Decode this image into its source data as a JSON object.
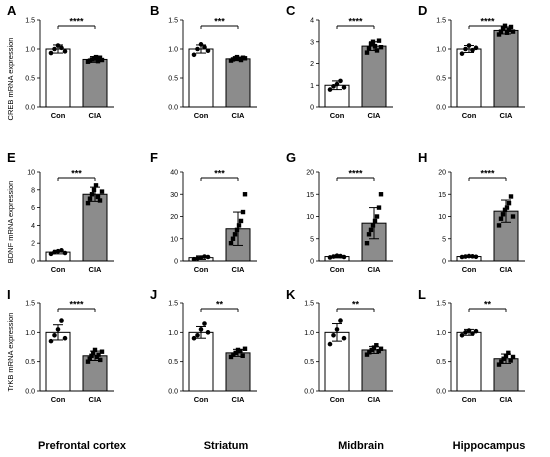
{
  "colors": {
    "con_bar": "#ffffff",
    "cia_bar": "#8c8c8c",
    "con_point": "#000000",
    "cia_point": "#000000"
  },
  "row_ylabels": [
    "CREB mRNA expression",
    "BDNF mRNA expression",
    "TrKB mRNA expression"
  ],
  "regions": [
    "Prefrontal cortex",
    "Striatum",
    "Midbrain",
    "Hippocampus"
  ],
  "chart_data": [
    {
      "panel": "A",
      "type": "bar",
      "categories": [
        "Con",
        "CIA"
      ],
      "values": [
        1.0,
        0.82
      ],
      "errors": [
        0.07,
        0.05
      ],
      "ylim": [
        0,
        1.5
      ],
      "yticks": [
        "0.0",
        "0.5",
        "1.0",
        "1.5"
      ],
      "significance": "****",
      "points": [
        [
          0.93,
          1.0,
          1.06,
          1.02,
          0.96
        ],
        [
          0.78,
          0.8,
          0.82,
          0.84,
          0.86,
          0.79,
          0.85,
          0.81
        ]
      ]
    },
    {
      "panel": "B",
      "type": "bar",
      "categories": [
        "Con",
        "CIA"
      ],
      "values": [
        1.0,
        0.83
      ],
      "errors": [
        0.07,
        0.03
      ],
      "ylim": [
        0,
        1.5
      ],
      "yticks": [
        "0.0",
        "0.5",
        "1.0",
        "1.5"
      ],
      "significance": "***",
      "points": [
        [
          0.9,
          1.0,
          1.08,
          1.03,
          0.97
        ],
        [
          0.8,
          0.82,
          0.84,
          0.86,
          0.83,
          0.81,
          0.85,
          0.84
        ]
      ]
    },
    {
      "panel": "C",
      "type": "bar",
      "categories": [
        "Con",
        "CIA"
      ],
      "values": [
        1.0,
        2.8
      ],
      "errors": [
        0.2,
        0.2
      ],
      "ylim": [
        0,
        4
      ],
      "yticks": [
        "0",
        "1",
        "2",
        "3",
        "4"
      ],
      "significance": "****",
      "points": [
        [
          0.8,
          0.95,
          1.05,
          1.2,
          0.9
        ],
        [
          2.5,
          2.7,
          2.9,
          3.0,
          2.8,
          2.6,
          3.05,
          2.75
        ]
      ]
    },
    {
      "panel": "D",
      "type": "bar",
      "categories": [
        "Con",
        "CIA"
      ],
      "values": [
        1.0,
        1.32
      ],
      "errors": [
        0.06,
        0.06
      ],
      "ylim": [
        0,
        1.5
      ],
      "yticks": [
        "0.0",
        "0.5",
        "1.0",
        "1.5"
      ],
      "significance": "****",
      "points": [
        [
          0.92,
          1.0,
          1.06,
          0.98,
          1.02
        ],
        [
          1.25,
          1.3,
          1.35,
          1.4,
          1.28,
          1.33,
          1.38,
          1.3
        ]
      ]
    },
    {
      "panel": "E",
      "type": "bar",
      "categories": [
        "Con",
        "CIA"
      ],
      "values": [
        1.0,
        7.5
      ],
      "errors": [
        0.2,
        0.8
      ],
      "ylim": [
        0,
        10
      ],
      "yticks": [
        "0",
        "2",
        "4",
        "6",
        "8",
        "10"
      ],
      "significance": "***",
      "points": [
        [
          0.8,
          1.0,
          1.1,
          1.2,
          0.9
        ],
        [
          6.5,
          7.0,
          7.5,
          8.0,
          8.5,
          7.2,
          6.8,
          7.8
        ]
      ]
    },
    {
      "panel": "F",
      "type": "bar",
      "categories": [
        "Con",
        "CIA"
      ],
      "values": [
        1.5,
        14.5
      ],
      "errors": [
        0.8,
        7.5
      ],
      "ylim": [
        0,
        40
      ],
      "yticks": [
        "0",
        "10",
        "20",
        "30",
        "40"
      ],
      "significance": "***",
      "points": [
        [
          0.8,
          1.2,
          1.5,
          2.0,
          1.8
        ],
        [
          8,
          10,
          12,
          14,
          16,
          18,
          22,
          30
        ]
      ]
    },
    {
      "panel": "G",
      "type": "bar",
      "categories": [
        "Con",
        "CIA"
      ],
      "values": [
        1.0,
        8.5
      ],
      "errors": [
        0.3,
        3.5
      ],
      "ylim": [
        0,
        20
      ],
      "yticks": [
        "0",
        "5",
        "10",
        "15",
        "20"
      ],
      "significance": "****",
      "points": [
        [
          0.8,
          1.0,
          1.2,
          1.1,
          0.9
        ],
        [
          4,
          6,
          7,
          8,
          9,
          10,
          12,
          15
        ]
      ]
    },
    {
      "panel": "H",
      "type": "bar",
      "categories": [
        "Con",
        "CIA"
      ],
      "values": [
        1.0,
        11.2
      ],
      "errors": [
        0.15,
        2.5
      ],
      "ylim": [
        0,
        20
      ],
      "yticks": [
        "0",
        "5",
        "10",
        "15",
        "20"
      ],
      "significance": "****",
      "points": [
        [
          0.9,
          1.0,
          1.1,
          1.05,
          0.95
        ],
        [
          8,
          9.5,
          10.5,
          11.5,
          12,
          13,
          14.5,
          10
        ]
      ]
    },
    {
      "panel": "I",
      "type": "bar",
      "categories": [
        "Con",
        "CIA"
      ],
      "values": [
        1.0,
        0.6
      ],
      "errors": [
        0.13,
        0.08
      ],
      "ylim": [
        0,
        1.5
      ],
      "yticks": [
        "0.0",
        "0.5",
        "1.0",
        "1.5"
      ],
      "significance": "****",
      "points": [
        [
          0.85,
          0.95,
          1.05,
          1.2,
          0.9
        ],
        [
          0.5,
          0.55,
          0.6,
          0.65,
          0.7,
          0.58,
          0.62,
          0.53,
          0.67
        ]
      ]
    },
    {
      "panel": "J",
      "type": "bar",
      "categories": [
        "Con",
        "CIA"
      ],
      "values": [
        1.0,
        0.65
      ],
      "errors": [
        0.1,
        0.06
      ],
      "ylim": [
        0,
        1.5
      ],
      "yticks": [
        "0.0",
        "0.5",
        "1.0",
        "1.5"
      ],
      "significance": "**",
      "points": [
        [
          0.9,
          0.95,
          1.05,
          1.15,
          1.0
        ],
        [
          0.58,
          0.62,
          0.65,
          0.7,
          0.68,
          0.6,
          0.72
        ]
      ]
    },
    {
      "panel": "K",
      "type": "bar",
      "categories": [
        "Con",
        "CIA"
      ],
      "values": [
        1.0,
        0.7
      ],
      "errors": [
        0.15,
        0.06
      ],
      "ylim": [
        0,
        1.5
      ],
      "yticks": [
        "0.0",
        "0.5",
        "1.0",
        "1.5"
      ],
      "significance": "**",
      "points": [
        [
          0.8,
          0.95,
          1.05,
          1.2,
          0.9
        ],
        [
          0.62,
          0.66,
          0.7,
          0.74,
          0.78,
          0.68,
          0.72
        ]
      ]
    },
    {
      "panel": "L",
      "type": "bar",
      "categories": [
        "Con",
        "CIA"
      ],
      "values": [
        1.0,
        0.55
      ],
      "errors": [
        0.05,
        0.08
      ],
      "ylim": [
        0,
        1.5
      ],
      "yticks": [
        "0.0",
        "0.5",
        "1.0",
        "1.5"
      ],
      "significance": "**",
      "points": [
        [
          0.95,
          1.0,
          1.03,
          0.98,
          1.02
        ],
        [
          0.45,
          0.5,
          0.55,
          0.6,
          0.65,
          0.52,
          0.58
        ]
      ]
    }
  ]
}
